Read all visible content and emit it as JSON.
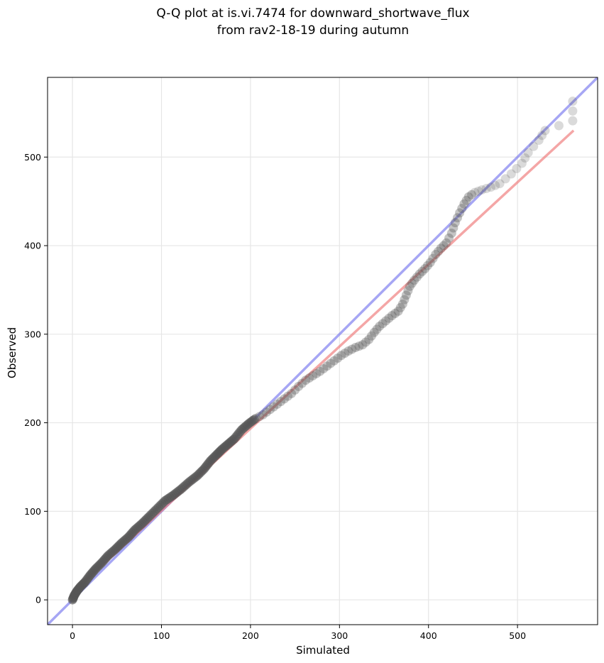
{
  "chart_data": {
    "type": "scatter",
    "title_line1": "Q-Q plot at is.vi.7474 for downward_shortwave_flux",
    "title_line2": "from rav2-18-19 during autumn",
    "xlabel": "Simulated",
    "ylabel": "Observed",
    "xlim": [
      -28,
      590
    ],
    "ylim": [
      -28,
      590
    ],
    "x_ticks": [
      0,
      100,
      200,
      300,
      400,
      500
    ],
    "y_ticks": [
      0,
      100,
      200,
      300,
      400,
      500
    ],
    "x_tick_labels": [
      "0",
      "100",
      "200",
      "300",
      "400",
      "500"
    ],
    "y_tick_labels": [
      "0",
      "100",
      "200",
      "300",
      "400",
      "500"
    ],
    "grid": true,
    "colors": {
      "points": "#555555",
      "identity_line": "#7777ee",
      "fit_line": "#ee7777"
    },
    "quantile_points": [
      [
        0,
        0
      ],
      [
        2,
        5
      ],
      [
        5,
        10
      ],
      [
        9,
        15
      ],
      [
        14,
        20
      ],
      [
        20,
        28
      ],
      [
        26,
        35
      ],
      [
        33,
        42
      ],
      [
        40,
        50
      ],
      [
        48,
        57
      ],
      [
        55,
        64
      ],
      [
        63,
        71
      ],
      [
        70,
        79
      ],
      [
        78,
        86
      ],
      [
        86,
        94
      ],
      [
        95,
        103
      ],
      [
        104,
        112
      ],
      [
        113,
        118
      ],
      [
        122,
        125
      ],
      [
        131,
        133
      ],
      [
        140,
        140
      ],
      [
        148,
        148
      ],
      [
        155,
        157
      ],
      [
        162,
        164
      ],
      [
        168,
        170
      ],
      [
        175,
        176
      ],
      [
        182,
        182
      ],
      [
        190,
        192
      ],
      [
        198,
        199
      ],
      [
        206,
        205
      ],
      [
        214,
        209
      ],
      [
        222,
        215
      ],
      [
        230,
        221
      ],
      [
        238,
        227
      ],
      [
        246,
        233
      ],
      [
        254,
        241
      ],
      [
        262,
        248
      ],
      [
        270,
        253
      ],
      [
        278,
        258
      ],
      [
        286,
        264
      ],
      [
        294,
        270
      ],
      [
        302,
        276
      ],
      [
        310,
        281
      ],
      [
        318,
        285
      ],
      [
        326,
        288
      ],
      [
        333,
        294
      ],
      [
        339,
        302
      ],
      [
        345,
        309
      ],
      [
        352,
        315
      ],
      [
        359,
        321
      ],
      [
        366,
        326
      ],
      [
        371,
        334
      ],
      [
        375,
        344
      ],
      [
        379,
        354
      ],
      [
        384,
        361
      ],
      [
        390,
        368
      ],
      [
        396,
        374
      ],
      [
        402,
        381
      ],
      [
        408,
        390
      ],
      [
        414,
        397
      ],
      [
        420,
        403
      ],
      [
        426,
        414
      ],
      [
        430,
        426
      ],
      [
        435,
        437
      ],
      [
        440,
        447
      ],
      [
        445,
        455
      ],
      [
        452,
        460
      ],
      [
        460,
        463
      ],
      [
        470,
        466
      ],
      [
        480,
        470
      ],
      [
        493,
        481
      ],
      [
        505,
        493
      ],
      [
        512,
        505
      ],
      [
        524,
        519
      ],
      [
        531,
        530
      ],
      [
        562,
        541
      ],
      [
        562,
        563
      ]
    ],
    "identity_line": {
      "x": [
        -28,
        590
      ],
      "y": [
        -28,
        590
      ]
    },
    "fit_line": {
      "x": [
        0,
        563
      ],
      "y": [
        8,
        530
      ]
    }
  }
}
